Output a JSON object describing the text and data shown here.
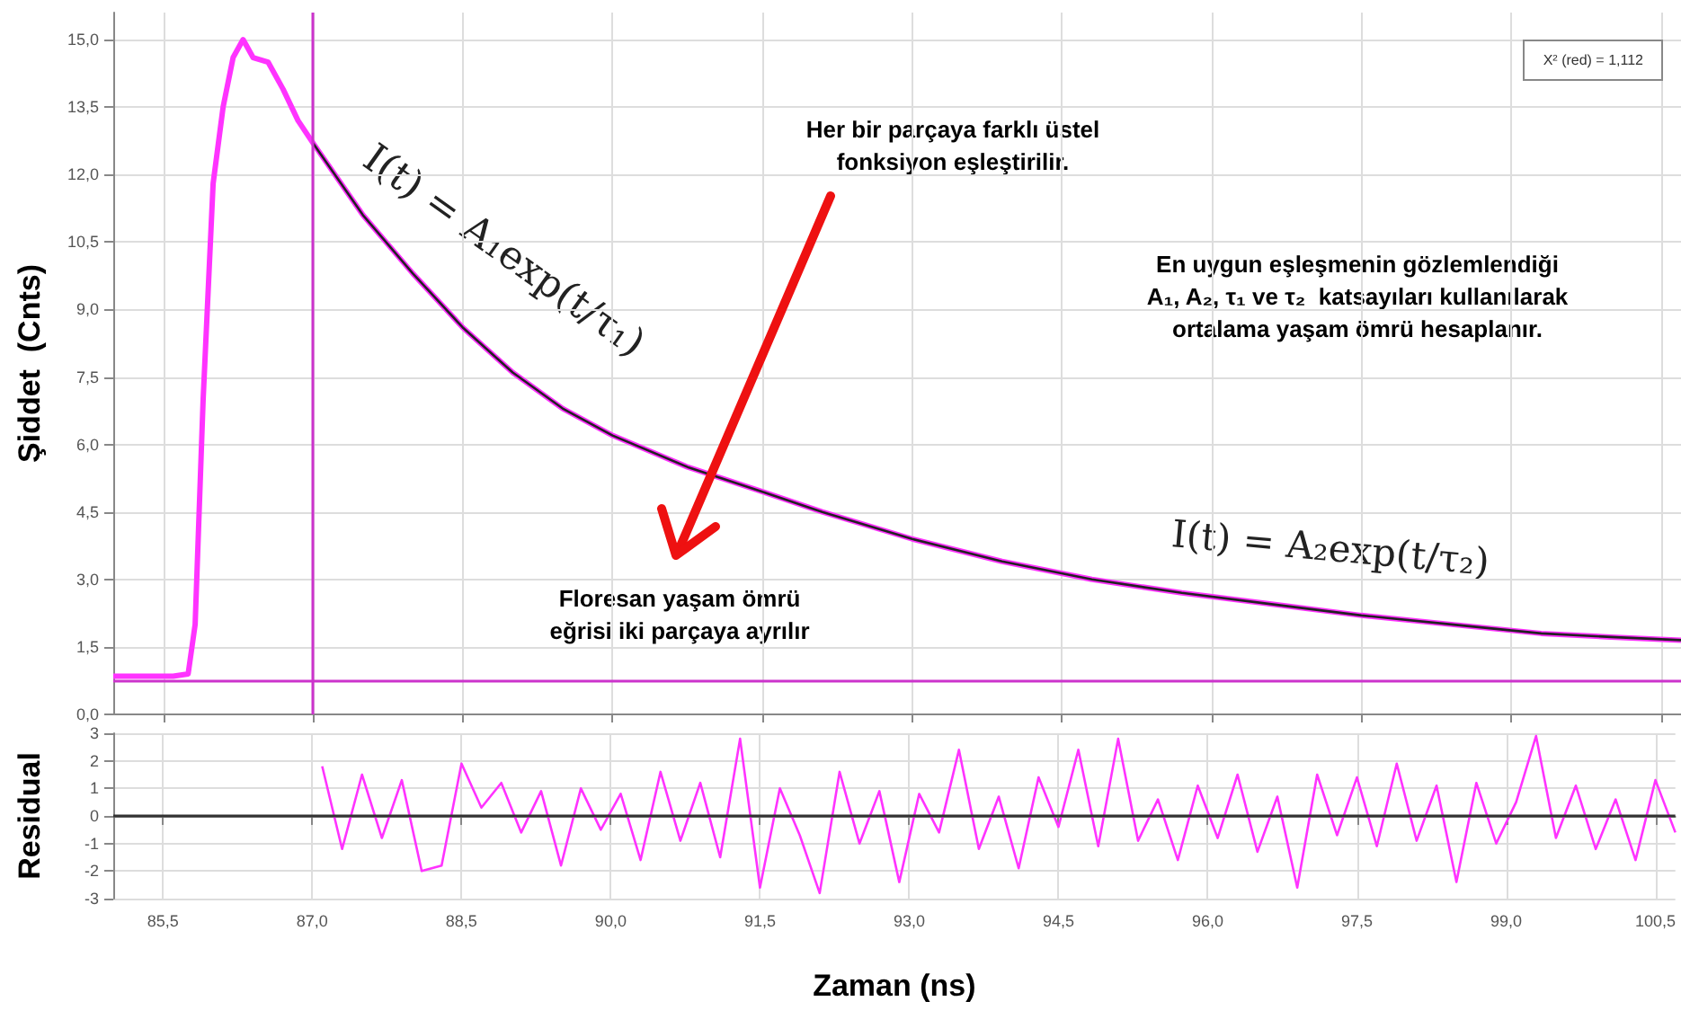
{
  "chart_data": [
    {
      "type": "line",
      "ylabel": "Şiddet  (Cnts)",
      "xlim": [
        85.0,
        100.7
      ],
      "ylim": [
        0,
        15.6
      ],
      "xticks": [
        {
          "value": 85.5,
          "label": null
        },
        {
          "value": 87.0,
          "label": null
        },
        {
          "value": 88.5,
          "label": null
        },
        {
          "value": 90.0,
          "label": null
        },
        {
          "value": 91.5,
          "label": null
        },
        {
          "value": 93.0,
          "label": null
        },
        {
          "value": 94.5,
          "label": null
        },
        {
          "value": 96.0,
          "label": null
        },
        {
          "value": 97.5,
          "label": null
        },
        {
          "value": 99.0,
          "label": null
        },
        {
          "value": 100.5,
          "label": null
        }
      ],
      "yticks": [
        {
          "value": 0,
          "label": "0,0"
        },
        {
          "value": 1.5,
          "label": "1,5"
        },
        {
          "value": 3.0,
          "label": "3,0"
        },
        {
          "value": 4.5,
          "label": "4,5"
        },
        {
          "value": 6.0,
          "label": "6,0"
        },
        {
          "value": 7.5,
          "label": "7,5"
        },
        {
          "value": 9.0,
          "label": "9,0"
        },
        {
          "value": 10.5,
          "label": "10,5"
        },
        {
          "value": 12.0,
          "label": "12,0"
        },
        {
          "value": 13.5,
          "label": "13,5"
        },
        {
          "value": 15.0,
          "label": "15,0"
        }
      ],
      "tick_labels": "y",
      "grid": true,
      "marker": "none",
      "series": [
        {
          "color": "#ff33ff",
          "x": [
            85.0,
            85.3,
            85.6,
            85.75,
            85.82,
            85.9,
            86.0,
            86.1,
            86.2,
            86.3,
            86.4,
            86.55,
            86.7,
            86.85,
            87.0,
            87.5,
            88.0,
            88.5,
            89.0,
            89.5,
            90.0,
            90.75,
            91.5,
            92.1,
            93.0,
            93.9,
            94.8,
            95.7,
            96.6,
            97.5,
            98.4,
            99.3,
            100.0,
            100.7
          ],
          "values": [
            0.85,
            0.85,
            0.85,
            0.9,
            2.0,
            7.0,
            11.8,
            13.5,
            14.6,
            15.0,
            14.6,
            14.5,
            13.9,
            13.2,
            12.7,
            11.1,
            9.8,
            8.6,
            7.6,
            6.8,
            6.2,
            5.5,
            4.95,
            4.5,
            3.9,
            3.4,
            3.0,
            2.7,
            2.45,
            2.2,
            2.0,
            1.8,
            1.72,
            1.65
          ]
        },
        {
          "color": "#222222",
          "x": [
            87.0,
            87.5,
            88.0,
            88.5,
            89.0,
            89.5,
            90.0,
            90.75,
            91.5,
            92.1,
            93.0,
            93.9,
            94.8,
            95.7,
            96.6,
            97.5,
            98.4,
            99.3,
            100.0,
            100.7
          ],
          "values": [
            12.7,
            11.1,
            9.8,
            8.6,
            7.6,
            6.8,
            6.2,
            5.5,
            4.95,
            4.5,
            3.9,
            3.4,
            3.0,
            2.7,
            2.45,
            2.2,
            2.0,
            1.8,
            1.72,
            1.65
          ]
        }
      ],
      "ref_lines": [
        {
          "axis": "x",
          "value": 87.0,
          "color": "#cc33cc"
        },
        {
          "axis": "y",
          "value": 0.75,
          "color": "#cc33cc"
        }
      ],
      "annotations": [
        "X² (red) = 1,112",
        "Her bir parçaya farklı üstel\nfonksiyon eşleştirilir.",
        "I(t) = A₁exp(t/τ₁)",
        "En uygun eşleşmenin gözlemlendiği\nA₁, A₂, τ₁ ve τ₂  katsayıları kullanılarak\nortalama yaşam ömrü hesaplanır.",
        "I(t) = A₂exp(t/τ₂)",
        "Floresan yaşam ömrü\neğrisi iki parçaya ayrılır"
      ]
    },
    {
      "type": "line",
      "ylabel": "Residual",
      "xlabel": "Zaman (ns)",
      "xlim": [
        85.0,
        100.7
      ],
      "ylim": [
        -3,
        3
      ],
      "xticks": [
        {
          "value": 85.5,
          "label": "85,5"
        },
        {
          "value": 87.0,
          "label": "87,0"
        },
        {
          "value": 88.5,
          "label": "88,5"
        },
        {
          "value": 90.0,
          "label": "90,0"
        },
        {
          "value": 91.5,
          "label": "91,5"
        },
        {
          "value": 93.0,
          "label": "93,0"
        },
        {
          "value": 94.5,
          "label": "94,5"
        },
        {
          "value": 96.0,
          "label": "96,0"
        },
        {
          "value": 97.5,
          "label": "97,5"
        },
        {
          "value": 99.0,
          "label": "99,0"
        },
        {
          "value": 100.5,
          "label": "100,5"
        }
      ],
      "yticks": [
        -3,
        -2,
        -1,
        0,
        1,
        2,
        3
      ],
      "grid": true,
      "marker": "none",
      "series": [
        {
          "color": "#ff33ff",
          "x": [
            87.1,
            87.3,
            87.5,
            87.7,
            87.9,
            88.1,
            88.3,
            88.5,
            88.7,
            88.9,
            89.1,
            89.3,
            89.5,
            89.7,
            89.9,
            90.1,
            90.3,
            90.5,
            90.7,
            90.9,
            91.1,
            91.3,
            91.5,
            91.7,
            91.9,
            92.1,
            92.3,
            92.5,
            92.7,
            92.9,
            93.1,
            93.3,
            93.5,
            93.7,
            93.9,
            94.1,
            94.3,
            94.5,
            94.7,
            94.9,
            95.1,
            95.3,
            95.5,
            95.7,
            95.9,
            96.1,
            96.3,
            96.5,
            96.7,
            96.9,
            97.1,
            97.3,
            97.5,
            97.7,
            97.9,
            98.1,
            98.3,
            98.5,
            98.7,
            98.9,
            99.1,
            99.3,
            99.5,
            99.7,
            99.9,
            100.1,
            100.3,
            100.5,
            100.7
          ],
          "values": [
            1.8,
            -1.2,
            1.5,
            -0.8,
            1.3,
            -2.0,
            -1.8,
            1.9,
            0.3,
            1.2,
            -0.6,
            0.9,
            -1.8,
            1.0,
            -0.5,
            0.8,
            -1.6,
            1.6,
            -0.9,
            1.2,
            -1.5,
            2.8,
            -2.6,
            1.0,
            -0.7,
            -2.8,
            1.6,
            -1.0,
            0.9,
            -2.4,
            0.8,
            -0.6,
            2.4,
            -1.2,
            0.7,
            -1.9,
            1.4,
            -0.4,
            2.4,
            -1.1,
            2.8,
            -0.9,
            0.6,
            -1.6,
            1.1,
            -0.8,
            1.5,
            -1.3,
            0.7,
            -2.6,
            1.5,
            -0.7,
            1.4,
            -1.1,
            1.9,
            -0.9,
            1.1,
            -2.4,
            1.2,
            -1.0,
            0.5,
            2.9,
            -0.8,
            1.1,
            -1.2,
            0.6,
            -1.6,
            1.3,
            -0.6
          ]
        }
      ],
      "ref_lines": [
        {
          "axis": "y",
          "value": 0,
          "color": "#333333"
        }
      ]
    }
  ]
}
